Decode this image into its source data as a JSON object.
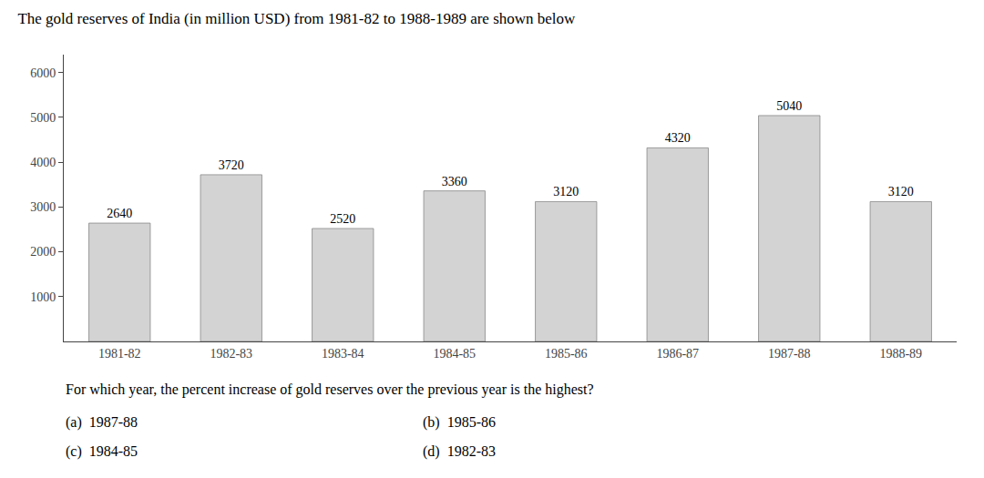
{
  "chart_data": {
    "type": "bar",
    "title": "The gold reserves of India (in million USD) from 1981-82 to 1988-1989 are shown below",
    "categories": [
      "1981-82",
      "1982-83",
      "1983-84",
      "1984-85",
      "1985-86",
      "1986-87",
      "1987-88",
      "1988-89"
    ],
    "values": [
      2640,
      3720,
      2520,
      3360,
      3120,
      4320,
      5040,
      3120
    ],
    "color": "#d3d3d3",
    "ylim": [
      0,
      6400
    ],
    "yticks": [
      1000,
      2000,
      3000,
      4000,
      5000,
      6000
    ],
    "grid": false,
    "data_labels": true,
    "annotations": [
      "For which year, the percent increase of gold reserves over the previous year is the highest?",
      "(a)  1987-88",
      "(b)  1985-86",
      "(c)  1984-85",
      "(d)  1982-83"
    ]
  }
}
